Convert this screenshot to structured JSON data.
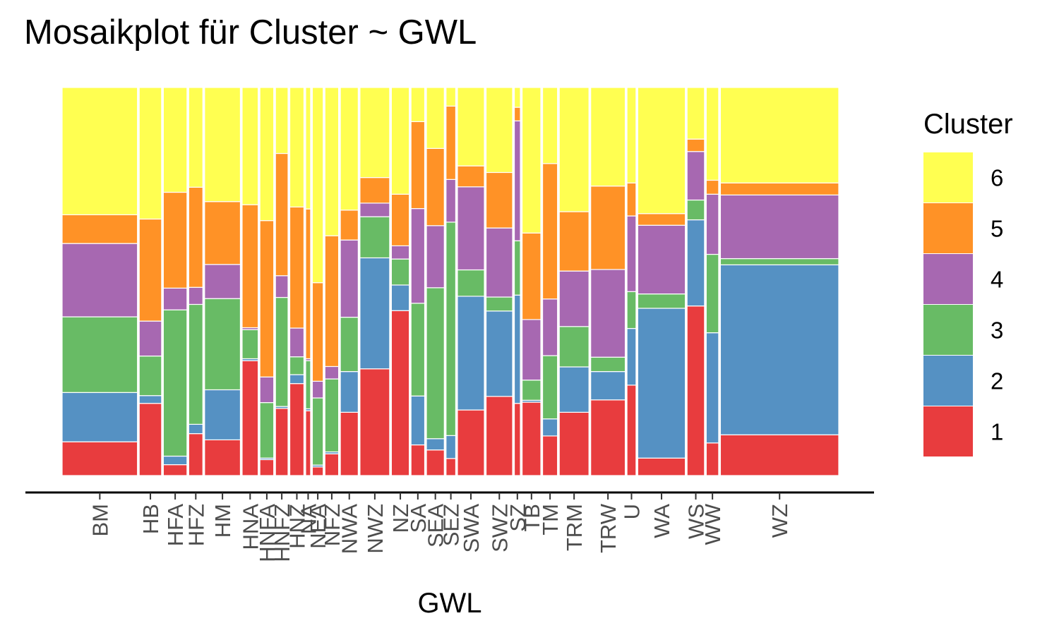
{
  "chart_data": {
    "type": "mosaic",
    "title": "Mosaikplot für Cluster ~ GWL",
    "xlabel": "GWL",
    "ylabel": "",
    "legend": {
      "title": "Cluster",
      "position": "right",
      "entries": [
        "6",
        "5",
        "4",
        "3",
        "2",
        "1"
      ]
    },
    "colors": {
      "1": "#E41A1C",
      "2": "#377EB8",
      "3": "#4DAF4A",
      "4": "#984EA3",
      "5": "#FF7F00",
      "6": "#FFFF33"
    },
    "fill_alpha": 0.85,
    "grid": false,
    "categories": [
      "BM",
      "HB",
      "HFA",
      "HFZ",
      "HM",
      "HNA",
      "HNFA",
      "HNFZ",
      "HNZ",
      "NA",
      "NEA",
      "NFZ",
      "NWA",
      "NWZ",
      "NZ",
      "SA",
      "SEA",
      "SEZ",
      "SWA",
      "SWZ",
      "SZ",
      "TB",
      "TM",
      "TRM",
      "TRW",
      "U",
      "WA",
      "WS",
      "WW",
      "WZ"
    ],
    "category_shares": [
      8.99,
      2.67,
      2.82,
      1.68,
      4.27,
      1.91,
      1.65,
      1.5,
      1.68,
      0.59,
      1.29,
      1.63,
      2.13,
      3.54,
      2.13,
      1.63,
      2.13,
      1.15,
      3.21,
      3.16,
      0.72,
      2.23,
      1.78,
      3.54,
      4.12,
      1.08,
      5.67,
      2.08,
      1.48,
      14.12
    ],
    "cluster_order": [
      "1",
      "2",
      "3",
      "4",
      "5",
      "6"
    ],
    "proportions": {
      "BM": [
        0.087,
        0.127,
        0.195,
        0.189,
        0.074,
        0.328
      ],
      "HB": [
        0.186,
        0.02,
        0.102,
        0.09,
        0.263,
        0.339
      ],
      "HFA": [
        0.028,
        0.022,
        0.377,
        0.056,
        0.247,
        0.27
      ],
      "HFZ": [
        0.108,
        0.024,
        0.309,
        0.044,
        0.258,
        0.257
      ],
      "HM": [
        0.092,
        0.129,
        0.235,
        0.088,
        0.162,
        0.294
      ],
      "HNA": [
        0.296,
        0.005,
        0.075,
        0.005,
        0.317,
        0.302
      ],
      "HNFA": [
        0.041,
        0.004,
        0.143,
        0.066,
        0.403,
        0.343
      ],
      "HNFZ": [
        0.173,
        0.005,
        0.281,
        0.056,
        0.315,
        0.17
      ],
      "HNZ": [
        0.237,
        0.023,
        0.046,
        0.074,
        0.312,
        0.308
      ],
      "NA": [
        0.167,
        0.005,
        0.124,
        0.005,
        0.386,
        0.313
      ],
      "NEA": [
        0.022,
        0.005,
        0.173,
        0.043,
        0.254,
        0.503
      ],
      "NFZ": [
        0.056,
        0.005,
        0.188,
        0.032,
        0.337,
        0.382
      ],
      "NWA": [
        0.163,
        0.105,
        0.14,
        0.199,
        0.077,
        0.316
      ],
      "NWZ": [
        0.275,
        0.286,
        0.106,
        0.035,
        0.066,
        0.232
      ],
      "NZ": [
        0.425,
        0.066,
        0.067,
        0.034,
        0.133,
        0.275
      ],
      "SA": [
        0.079,
        0.126,
        0.239,
        0.244,
        0.224,
        0.088
      ],
      "SEA": [
        0.066,
        0.029,
        0.389,
        0.16,
        0.199,
        0.157
      ],
      "SEZ": [
        0.044,
        0.059,
        0.55,
        0.11,
        0.189,
        0.048
      ],
      "SWA": [
        0.169,
        0.293,
        0.068,
        0.214,
        0.054,
        0.202
      ],
      "SWZ": [
        0.204,
        0.22,
        0.036,
        0.178,
        0.143,
        0.219
      ],
      "SZ": [
        0.186,
        0.279,
        0.14,
        0.309,
        0.035,
        0.051
      ],
      "TB": [
        0.189,
        0.005,
        0.052,
        0.156,
        0.223,
        0.375
      ],
      "TM": [
        0.102,
        0.044,
        0.163,
        0.146,
        0.349,
        0.196
      ],
      "TRM": [
        0.163,
        0.117,
        0.104,
        0.143,
        0.153,
        0.32
      ],
      "TRW": [
        0.195,
        0.073,
        0.037,
        0.226,
        0.215,
        0.254
      ],
      "U": [
        0.233,
        0.146,
        0.095,
        0.195,
        0.085,
        0.246
      ],
      "WA": [
        0.045,
        0.386,
        0.037,
        0.177,
        0.03,
        0.325
      ],
      "WS": [
        0.437,
        0.222,
        0.051,
        0.125,
        0.032,
        0.133
      ],
      "WW": [
        0.084,
        0.284,
        0.202,
        0.155,
        0.036,
        0.239
      ],
      "WZ": [
        0.105,
        0.438,
        0.016,
        0.164,
        0.031,
        0.246
      ]
    }
  }
}
